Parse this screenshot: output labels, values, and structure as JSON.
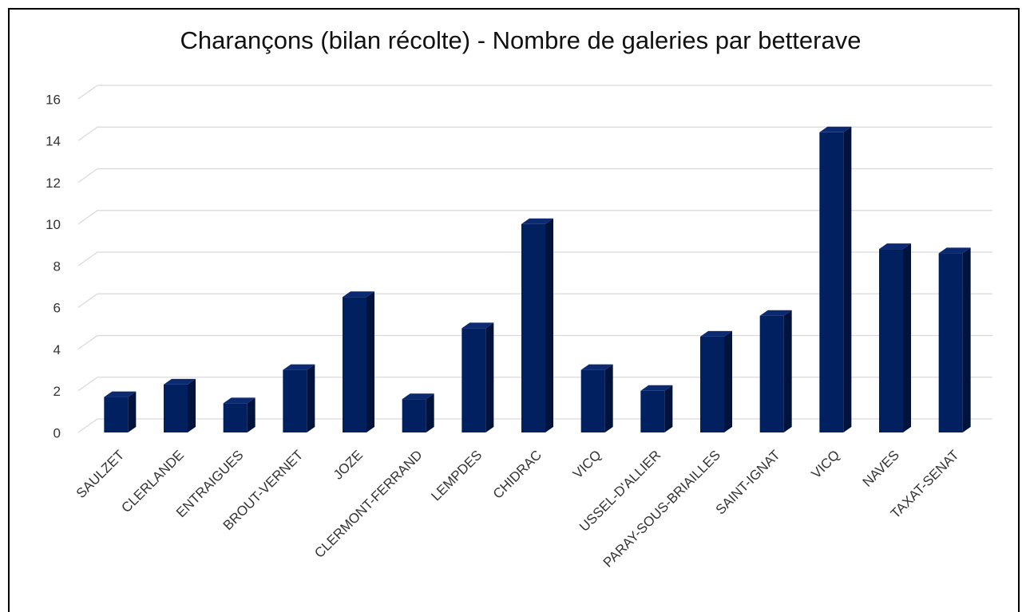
{
  "chart_data": {
    "type": "bar",
    "title": "Charançons (bilan récolte) - Nombre de galeries par betterave",
    "categories": [
      "SAULZET",
      "CLERLANDE",
      "ENTRAIGUES",
      "BROUT-VERNET",
      "JOZE",
      "CLERMONT-FERRAND",
      "LEMPDES",
      "CHIDRAC",
      "VICQ",
      "USSEL-D'ALLIER",
      "PARAY-SOUS-BRIAILLES",
      "SAINT-IGNAT",
      "VICQ",
      "NAVES",
      "TAXAT-SENAT"
    ],
    "values": [
      1.7,
      2.3,
      1.4,
      3,
      6.5,
      1.6,
      5,
      10,
      3,
      2,
      4.6,
      5.6,
      14.4,
      8.8,
      8.6
    ],
    "color": "#002060",
    "ylim": [
      0,
      16
    ],
    "yticks": [
      0,
      2,
      4,
      6,
      8,
      10,
      12,
      14,
      16
    ],
    "grid": true
  }
}
